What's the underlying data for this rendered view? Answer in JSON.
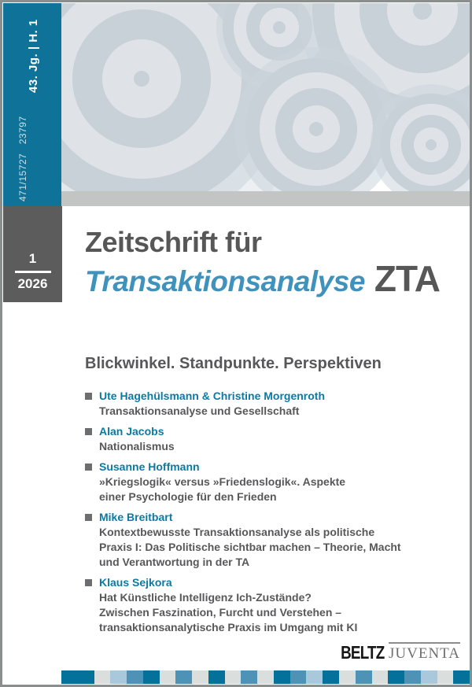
{
  "spine": {
    "issue_info": "43. Jg. | H. 1",
    "issn": "471/15727   23797"
  },
  "issue_box": {
    "number": "1",
    "year": "2026"
  },
  "masthead": {
    "title_line1": "Zeitschrift für",
    "title_line2": "Transaktionsanalyse",
    "abbreviation": "ZTA"
  },
  "subtitle": "Blickwinkel. Standpunkte. Perspektiven",
  "articles": [
    {
      "authors": "Ute Hagehülsmann & Christine Morgenroth",
      "title_lines": [
        "Transaktionsanalyse und Gesellschaft"
      ]
    },
    {
      "authors": "Alan Jacobs",
      "title_lines": [
        "Nationalismus"
      ]
    },
    {
      "authors": "Susanne Hoffmann",
      "title_lines": [
        "»Kriegslogik« versus »Friedenslogik«. Aspekte",
        "einer Psychologie für den Frieden"
      ]
    },
    {
      "authors": "Mike Breitbart",
      "title_lines": [
        "Kontextbewusste Transaktionsanalyse als politische",
        "Praxis I: Das Politische sichtbar machen – Theorie, Macht",
        "und Verantwortung in der TA"
      ]
    },
    {
      "authors": "Klaus Sejkora",
      "title_lines": [
        "Hat Künstliche Intelligenz Ich-Zustände?",
        "Zwischen Faszination, Furcht und Verstehen –",
        "transaktionsanalytische Praxis im Umgang mit KI"
      ]
    }
  ],
  "publisher": {
    "name_primary": "BELTZ",
    "name_secondary": "JUVENTA"
  },
  "colors": {
    "spine_teal": "#0f7298",
    "title_teal": "#3f92bc",
    "author_teal": "#0b7aa3",
    "text_gray": "#58585a",
    "box_gray": "#5c5c5c",
    "band_gray": "#c2c5c4",
    "strip_teal": "#04719a",
    "strip_medblue": "#4e93b6",
    "strip_lightblue": "#aac8dc",
    "strip_gray": "#dadedd"
  },
  "footer_strip": [
    "teal2",
    "gray",
    "lightblue",
    "medblue",
    "teal",
    "gray",
    "medblue",
    "gray",
    "teal",
    "gray",
    "medblue",
    "gray",
    "teal",
    "medblue",
    "lightblue",
    "teal",
    "gray",
    "medblue",
    "gray",
    "teal",
    "medblue",
    "lightblue",
    "gray",
    "teal"
  ]
}
